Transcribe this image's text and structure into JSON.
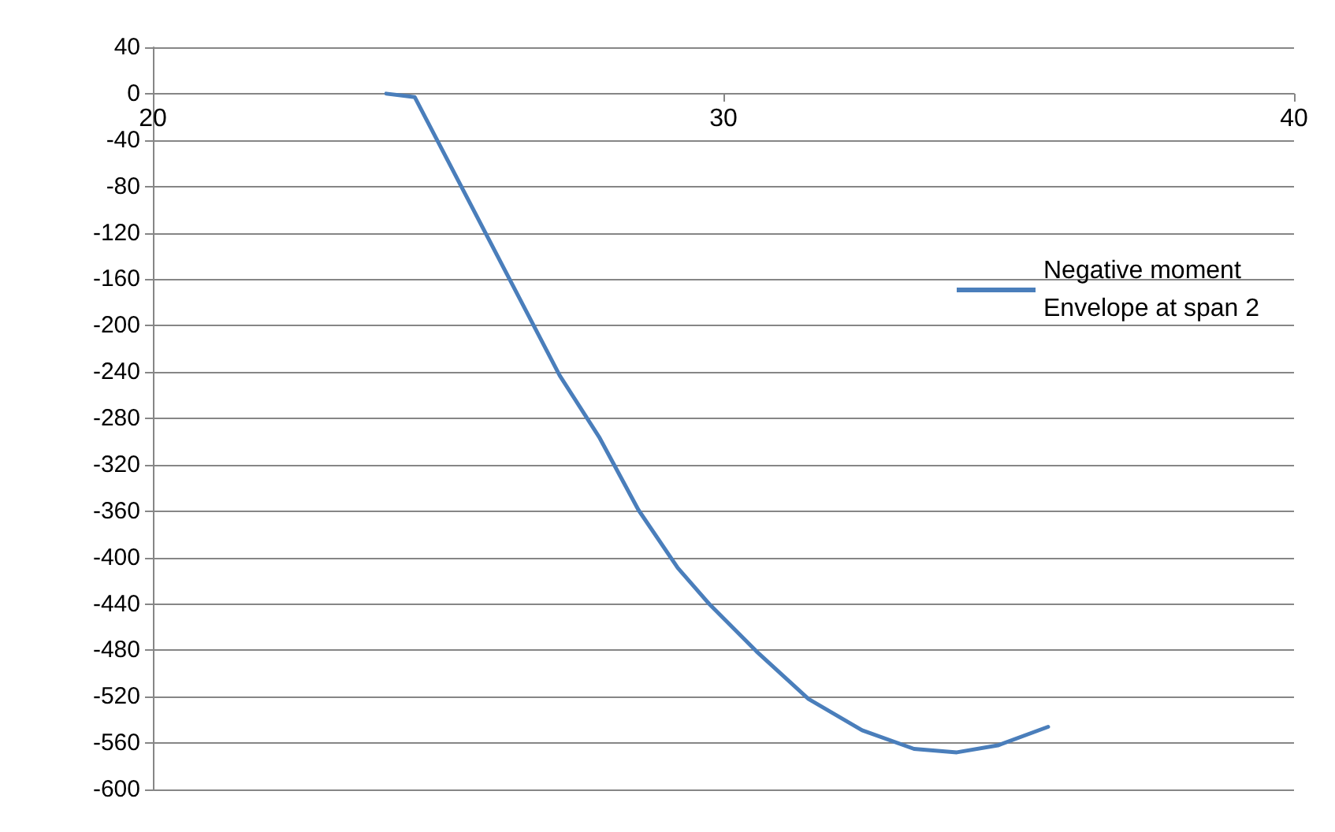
{
  "chart_data": {
    "type": "line",
    "x": [
      24.09,
      24.59,
      27.13,
      27.82,
      28.51,
      29.2,
      29.75,
      30.58,
      31.49,
      32.43,
      33.34,
      34.09,
      34.81,
      35.69
    ],
    "series": [
      {
        "name": "Negative moment Envelope at span 2",
        "color": "#4a7ebb",
        "values": [
          0,
          -3,
          -243,
          -296,
          -359,
          -409,
          -440,
          -481,
          -522,
          -549,
          -565,
          -568,
          -562,
          -546
        ]
      }
    ],
    "xlim": [
      20,
      40
    ],
    "xticks": [
      20,
      30,
      40
    ],
    "ylim": [
      -600,
      40
    ],
    "yticks": [
      -600,
      -560,
      -520,
      -480,
      -440,
      -400,
      -360,
      -320,
      -280,
      -240,
      -200,
      -160,
      -120,
      -80,
      -40,
      0,
      40
    ],
    "grid": "y",
    "legend": "right",
    "marker": "none",
    "line_style": "solid"
  }
}
